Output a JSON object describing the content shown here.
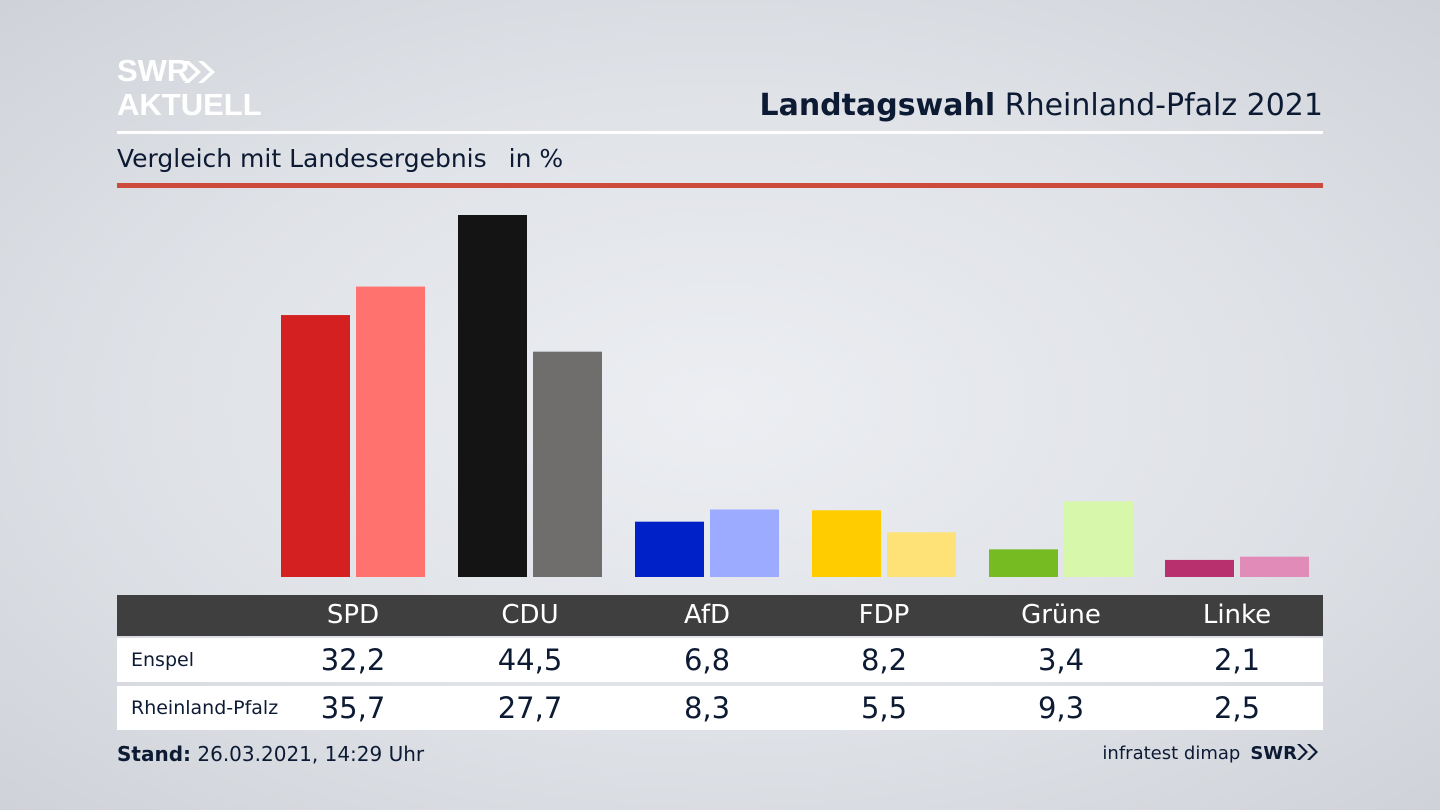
{
  "header": {
    "logo_line1": "SWR",
    "logo_line2": "AKTUELL",
    "title_bold": "Landtagswahl",
    "title_rest": "Rheinland-Pfalz 2021",
    "subtitle": "Vergleich mit Landesergebnis",
    "subtitle_unit": "in %"
  },
  "colors": {
    "accent_rule": "#cc4b3c",
    "table_header": "#3f3f3f",
    "text": "#0c1a33"
  },
  "chart_data": {
    "type": "bar",
    "categories": [
      "SPD",
      "CDU",
      "AfD",
      "FDP",
      "Grüne",
      "Linke"
    ],
    "series": [
      {
        "name": "Enspel",
        "values": [
          32.2,
          44.5,
          6.8,
          8.2,
          3.4,
          2.1
        ],
        "colors": [
          "#d42020",
          "#141414",
          "#0021c8",
          "#ffcc00",
          "#77bb22",
          "#b8306e"
        ]
      },
      {
        "name": "Rheinland-Pfalz",
        "values": [
          35.7,
          27.7,
          8.3,
          5.5,
          9.3,
          2.5
        ],
        "colors": [
          "#ff726e",
          "#6f6e6c",
          "#9cabff",
          "#ffe277",
          "#d7f7aa",
          "#e18cb8"
        ]
      }
    ],
    "ylim": [
      0,
      44.5
    ],
    "grid": false,
    "legend": "none"
  },
  "table": {
    "columns": [
      "SPD",
      "CDU",
      "AfD",
      "FDP",
      "Grüne",
      "Linke"
    ],
    "rows": [
      {
        "label": "Enspel",
        "values": [
          "32,2",
          "44,5",
          "6,8",
          "8,2",
          "3,4",
          "2,1"
        ]
      },
      {
        "label": "Rheinland-Pfalz",
        "values": [
          "35,7",
          "27,7",
          "8,3",
          "5,5",
          "9,3",
          "2,5"
        ]
      }
    ]
  },
  "footer": {
    "stand_label": "Stand:",
    "stand_value": "26.03.2021, 14:29 Uhr",
    "source": "infratest dimap",
    "source_logo": "SWR"
  }
}
